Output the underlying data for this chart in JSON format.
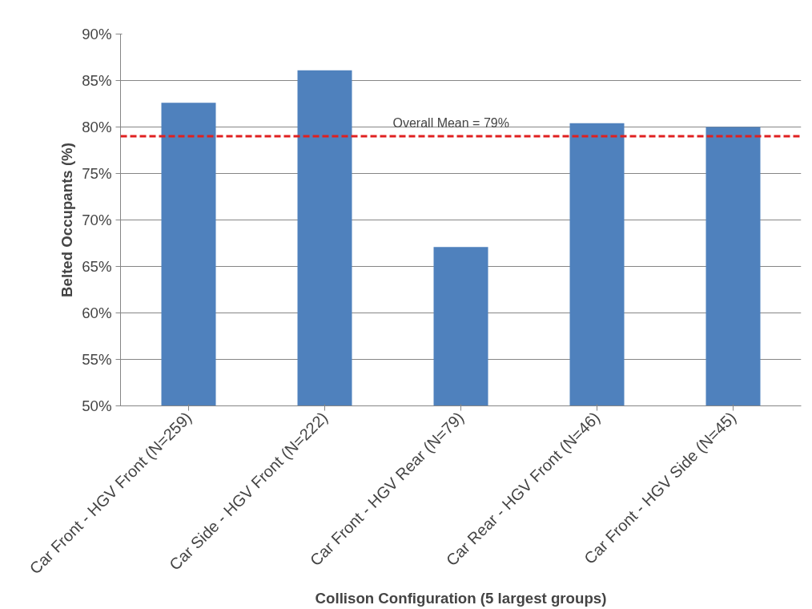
{
  "chart_data": {
    "type": "bar",
    "categories": [
      "Car Front - HGV Front (N=259)",
      "Car Side - HGV Front (N=222)",
      "Car Front - HGV Rear (N=79)",
      "Car Rear - HGV Front (N=46)",
      "Car Front - HGV Side (N=45)"
    ],
    "values": [
      82.6,
      86.1,
      67.1,
      80.4,
      80.0
    ],
    "color": "#4f81bd",
    "xlabel": "Collison Configuration (5 largest groups)",
    "ylabel": "Belted Occupants (%)",
    "ylim": [
      50,
      90
    ],
    "yticks": [
      {
        "value": 50,
        "label": "50%"
      },
      {
        "value": 55,
        "label": "55%"
      },
      {
        "value": 60,
        "label": "60%"
      },
      {
        "value": 65,
        "label": "65%"
      },
      {
        "value": 70,
        "label": "70%"
      },
      {
        "value": 75,
        "label": "75%"
      },
      {
        "value": 80,
        "label": "80%"
      },
      {
        "value": 85,
        "label": "85%"
      },
      {
        "value": 90,
        "label": "90%"
      }
    ],
    "grid": "y",
    "ref_lines": [
      {
        "axis": "y",
        "value": 79,
        "label": "Overall Mean = 79%",
        "color": "#e02020",
        "line_style": "dashed"
      }
    ]
  }
}
